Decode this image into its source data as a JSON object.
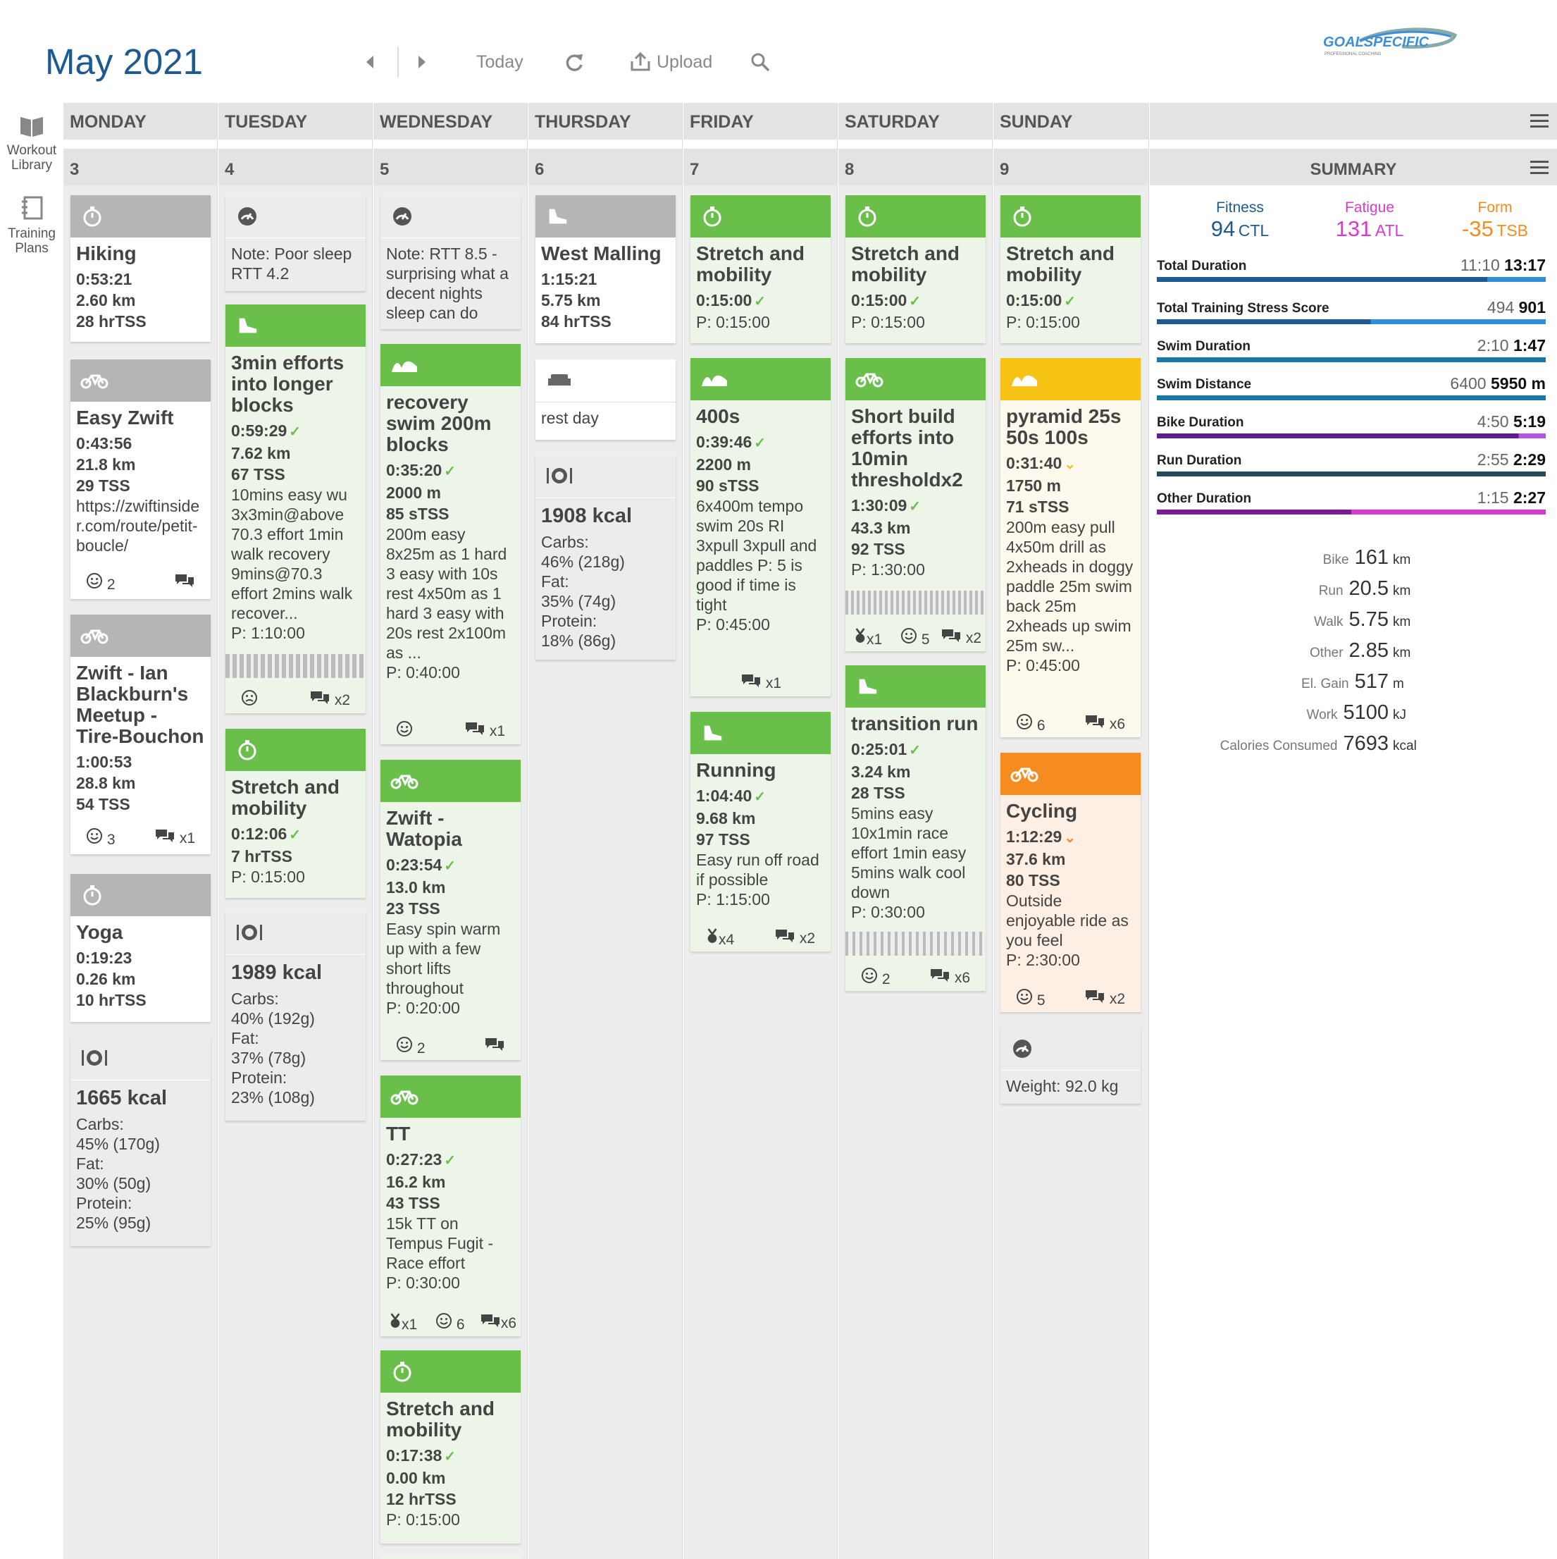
{
  "header": {
    "month": "May",
    "year": "2021",
    "today": "Today",
    "upload": "Upload",
    "logo": "GOALSPECIFIC",
    "logo_sub": "PROFESSIONAL COACHING"
  },
  "rail": {
    "workout_library": [
      "Workout",
      "Library"
    ],
    "training_plans": [
      "Training",
      "Plans"
    ]
  },
  "days": [
    "MONDAY",
    "TUESDAY",
    "WEDNESDAY",
    "THURSDAY",
    "FRIDAY",
    "SATURDAY",
    "SUNDAY"
  ],
  "dates": [
    "3",
    "4",
    "5",
    "6",
    "7",
    "8",
    "9"
  ],
  "summary_title": "SUMMARY",
  "summary": {
    "fitness": {
      "label": "Fitness",
      "value": "94",
      "unit": "CTL",
      "color": "#1d5a92"
    },
    "fatigue": {
      "label": "Fatigue",
      "value": "131",
      "unit": "ATL",
      "color": "#d63bd0"
    },
    "form": {
      "label": "Form",
      "value": "-35",
      "unit": "TSB",
      "color": "#f68c1f"
    },
    "rows": [
      {
        "label": "Total Duration",
        "planned": "11:10",
        "completed": "13:17",
        "color": "#1d5a92",
        "light": "#2f8fd8",
        "split": 0.85
      },
      {
        "label": "Total Training Stress Score",
        "planned": "494",
        "completed": "901",
        "color": "#1d5a92",
        "light": "#2f8fd8",
        "split": 0.55
      },
      {
        "label": "Swim Duration",
        "planned": "2:10",
        "completed": "1:47",
        "color": "#1a78a8",
        "light": "#1a78a8",
        "split": 1.0
      },
      {
        "label": "Swim Distance",
        "planned": "6400",
        "completed": "5950 m",
        "color": "#1a78a8",
        "light": "#1a78a8",
        "split": 1.0
      },
      {
        "label": "Bike Duration",
        "planned": "4:50",
        "completed": "5:19",
        "color": "#5a1d92",
        "light": "#b454e6",
        "split": 0.93
      },
      {
        "label": "Run Duration",
        "planned": "2:55",
        "completed": "2:29",
        "color": "#214a5a",
        "light": "#214a5a",
        "split": 1.0
      },
      {
        "label": "Other Duration",
        "planned": "1:15",
        "completed": "2:27",
        "color": "#7a1d92",
        "light": "#d63bd0",
        "split": 0.5
      }
    ],
    "misc": [
      {
        "label": "Bike",
        "value": "161",
        "unit": "km"
      },
      {
        "label": "Run",
        "value": "20.5",
        "unit": "km"
      },
      {
        "label": "Walk",
        "value": "5.75",
        "unit": "km"
      },
      {
        "label": "Other",
        "value": "2.85",
        "unit": "km"
      },
      {
        "label": "El. Gain",
        "value": "517",
        "unit": "m"
      },
      {
        "label": "Work",
        "value": "5100",
        "unit": "kJ"
      },
      {
        "label": "Calories Consumed",
        "value": "7693",
        "unit": "kcal"
      }
    ]
  },
  "cards": {
    "mon1": {
      "title": "Hiking",
      "l1": "0:53:21",
      "l2": "2.60 km",
      "l3": "28 hrTSS"
    },
    "mon2": {
      "title": "Easy Zwift",
      "l1": "0:43:56",
      "l2": "21.8 km",
      "l3": "29 TSS",
      "desc": "https://zwiftinsider.com/route/petit-boucle/",
      "feel": "2"
    },
    "mon3": {
      "title": "Zwift - Ian Blackburn's Meetup - Tire-Bouchon",
      "l1": "1:00:53",
      "l2": "28.8 km",
      "l3": "54 TSS",
      "feel": "3",
      "comments": "x1"
    },
    "mon4": {
      "title": "Yoga",
      "l1": "0:19:23",
      "l2": "0.26 km",
      "l3": "10 hrTSS"
    },
    "mon5": {
      "kcal": "1665 kcal",
      "carbs_l": "Carbs:",
      "carbs": "45% (170g)",
      "fat_l": "Fat:",
      "fat": "30% (50g)",
      "protein_l": "Protein:",
      "protein": "25% (95g)"
    },
    "tue1": {
      "note": "Note: Poor sleep RTT 4.2"
    },
    "tue2": {
      "title": "3min efforts into longer blocks",
      "l1": "0:59:29",
      "l2": "7.62 km",
      "l3": "67 TSS",
      "desc": "10mins easy wu 3x3min@above 70.3 effort 1min walk recovery 9mins@70.3 effort 2mins walk recover...",
      "planned": "P: 1:10:00",
      "comments": "x2"
    },
    "tue3": {
      "title": "Stretch and mobility",
      "l1": "0:12:06",
      "l2": "7 hrTSS",
      "planned": "P: 0:15:00"
    },
    "tue4": {
      "kcal": "1989 kcal",
      "carbs_l": "Carbs:",
      "carbs": "40% (192g)",
      "fat_l": "Fat:",
      "fat": "37% (78g)",
      "protein_l": "Protein:",
      "protein": "23% (108g)"
    },
    "wed1": {
      "note": "Note: RTT 8.5 - surprising what a decent nights sleep can do"
    },
    "wed2": {
      "title": "recovery swim 200m blocks",
      "l1": "0:35:20",
      "l2": "2000 m",
      "l3": "85 sTSS",
      "desc": "200m easy 8x25m as 1 hard 3 easy with 10s rest 4x50m as 1 hard 3 easy with 20s rest 2x100m as ...",
      "planned": "P: 0:40:00",
      "comments": "x1"
    },
    "wed3": {
      "title": "Zwift - Watopia",
      "l1": "0:23:54",
      "l2": "13.0 km",
      "l3": "23 TSS",
      "desc": "Easy spin warm up with a few short lifts throughout",
      "planned": "P: 0:20:00",
      "feel": "2"
    },
    "wed4": {
      "title": "TT",
      "l1": "0:27:23",
      "l2": "16.2 km",
      "l3": "43 TSS",
      "desc": "15k TT on Tempus Fugit - Race effort",
      "planned": "P: 0:30:00",
      "medal": "x1",
      "feel": "6",
      "comments": "x6"
    },
    "wed5": {
      "title": "Stretch and mobility",
      "l1": "0:17:38",
      "l2": "0.00 km",
      "l3": "12 hrTSS",
      "planned": "P: 0:15:00"
    },
    "thu1": {
      "title": "West Malling",
      "l1": "1:15:21",
      "l2": "5.75 km",
      "l3": "84 hrTSS"
    },
    "thu2": {
      "note": "rest day"
    },
    "thu3": {
      "kcal": "1908 kcal",
      "carbs_l": "Carbs:",
      "carbs": "46% (218g)",
      "fat_l": "Fat:",
      "fat": "35% (74g)",
      "protein_l": "Protein:",
      "protein": "18% (86g)"
    },
    "fri1": {
      "title": "Stretch and mobility",
      "l1": "0:15:00",
      "planned": "P: 0:15:00"
    },
    "fri2": {
      "title": "400s",
      "l1": "0:39:46",
      "l2": "2200 m",
      "l3": "90 sTSS",
      "desc": "6x400m tempo swim 20s RI 3xpull 3xpull and paddles P: 5 is good if time is tight",
      "planned": "P: 0:45:00",
      "comments": "x1"
    },
    "fri3": {
      "title": "Running",
      "l1": "1:04:40",
      "l2": "9.68 km",
      "l3": "97 TSS",
      "desc": "Easy run off road if possible",
      "planned": "P: 1:15:00",
      "medal": "x4",
      "comments": "x2"
    },
    "sat1": {
      "title": "Stretch and mobility",
      "l1": "0:15:00",
      "planned": "P: 0:15:00"
    },
    "sat2": {
      "title": "Short build efforts into 10min thresholdx2",
      "l1": "1:30:09",
      "l2": "43.3 km",
      "l3": "92 TSS",
      "planned": "P: 1:30:00",
      "medal": "x1",
      "feel": "5",
      "comments": "x2"
    },
    "sat3": {
      "title": "transition run",
      "l1": "0:25:01",
      "l2": "3.24 km",
      "l3": "28 TSS",
      "desc": "5mins easy 10x1min race effort 1min easy 5mins walk cool down",
      "planned": "P: 0:30:00",
      "feel": "2",
      "comments": "x6"
    },
    "sun1": {
      "title": "Stretch and mobility",
      "l1": "0:15:00",
      "planned": "P: 0:15:00"
    },
    "sun2": {
      "title": "pyramid 25s 50s 100s",
      "l1": "0:31:40",
      "l2": "1750 m",
      "l3": "71 sTSS",
      "desc": "200m easy pull 4x50m drill as 2xheads in doggy paddle 25m swim back 25m 2xheads up swim 25m sw...",
      "planned": "P: 0:45:00",
      "feel": "6",
      "comments": "x6"
    },
    "sun3": {
      "title": "Cycling",
      "l1": "1:12:29",
      "l2": "37.6 km",
      "l3": "80 TSS",
      "desc": "Outside enjoyable ride as you feel",
      "planned": "P: 2:30:00",
      "feel": "5",
      "comments": "x2"
    },
    "sun4": {
      "note": "Weight: 92.0 kg"
    }
  }
}
